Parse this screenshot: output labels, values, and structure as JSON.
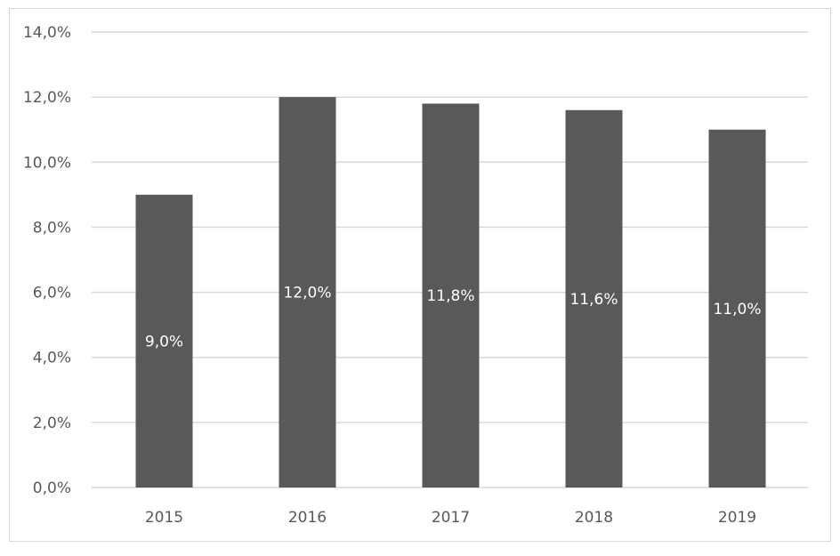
{
  "chart_data": {
    "type": "bar",
    "categories": [
      "2015",
      "2016",
      "2017",
      "2018",
      "2019"
    ],
    "values": [
      9.0,
      12.0,
      11.8,
      11.6,
      11.0
    ],
    "data_labels": [
      "9,0%",
      "12,0%",
      "11,8%",
      "11,6%",
      "11,0%"
    ],
    "ylim": [
      0,
      14
    ],
    "yticks": [
      0,
      2,
      4,
      6,
      8,
      10,
      12,
      14
    ],
    "ytick_labels": [
      "0,0%",
      "2,0%",
      "4,0%",
      "6,0%",
      "8,0%",
      "10,0%",
      "12,0%",
      "14,0%"
    ],
    "title": "",
    "xlabel": "",
    "ylabel": "",
    "grid": true,
    "legend": "none",
    "bar_color": "#595959"
  }
}
